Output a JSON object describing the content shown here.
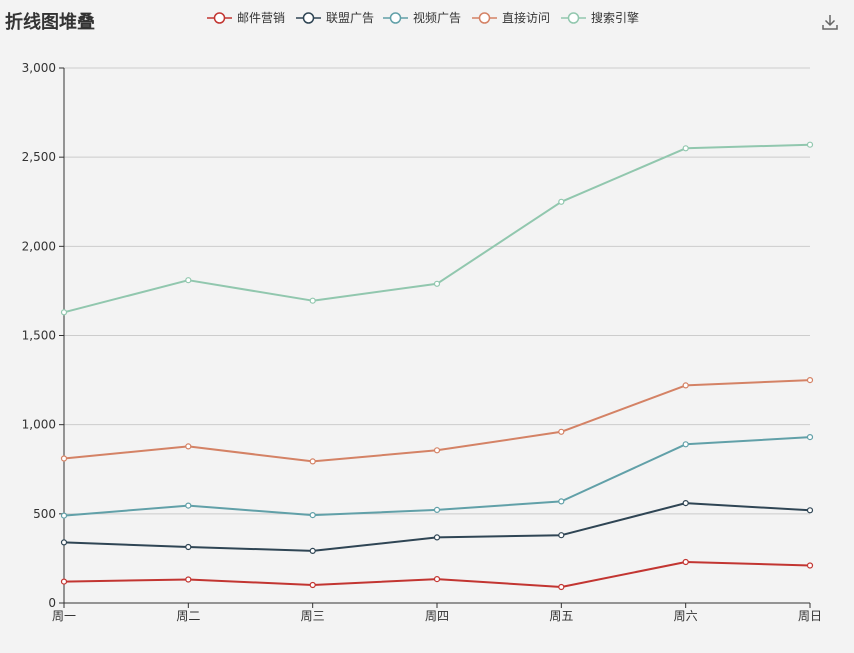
{
  "chart_data": {
    "type": "line",
    "title": "折线图堆叠",
    "xlabel": "",
    "ylabel": "",
    "stacked": true,
    "categories": [
      "周一",
      "周二",
      "周三",
      "周四",
      "周五",
      "周六",
      "周日"
    ],
    "ylim": [
      0,
      3000
    ],
    "yticks": [
      0,
      500,
      1000,
      1500,
      2000,
      2500,
      3000
    ],
    "ytick_labels": [
      "0",
      "500",
      "1,000",
      "1,500",
      "2,000",
      "2,500",
      "3,000"
    ],
    "grid": true,
    "legend_position": "top-center",
    "series": [
      {
        "name": "邮件营销",
        "color": "#c23531",
        "values": [
          120,
          132,
          101,
          134,
          90,
          230,
          210
        ]
      },
      {
        "name": "联盟广告",
        "color": "#2f4554",
        "values": [
          220,
          182,
          191,
          234,
          290,
          330,
          310
        ]
      },
      {
        "name": "视频广告",
        "color": "#61a0a8",
        "values": [
          150,
          232,
          201,
          154,
          190,
          330,
          410
        ]
      },
      {
        "name": "直接访问",
        "color": "#d48265",
        "values": [
          320,
          332,
          301,
          334,
          390,
          330,
          320
        ]
      },
      {
        "name": "搜索引擎",
        "color": "#91c7ae",
        "values": [
          820,
          932,
          901,
          934,
          1290,
          1330,
          1320
        ]
      }
    ]
  },
  "toolbox": {
    "download_icon": "download-icon",
    "color": "#666666"
  }
}
